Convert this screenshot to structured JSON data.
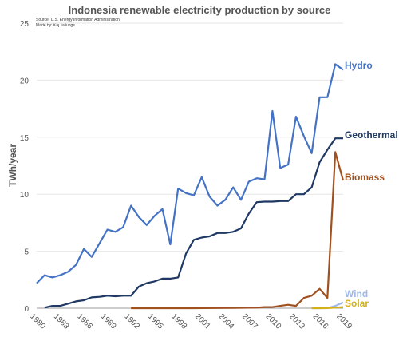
{
  "chart_data": {
    "type": "line",
    "title": "Indonesia renewable electricity production by source",
    "source": "Source: U.S. Energy Information Administration",
    "author": "Made by: Kaj Tallungs",
    "ylabel": "TWh/year",
    "xlabel": "",
    "xlim": [
      1980,
      2019
    ],
    "ylim": [
      0,
      25
    ],
    "yticks": [
      "0",
      "5",
      "10",
      "15",
      "20",
      "25"
    ],
    "xticks": [
      "1980",
      "1983",
      "1986",
      "1989",
      "1992",
      "1995",
      "1998",
      "2001",
      "2004",
      "2007",
      "2010",
      "2013",
      "2016",
      "2019"
    ],
    "grid": true,
    "legend": "labels at line ends",
    "series": [
      {
        "name": "Hydro",
        "color": "#4472c4",
        "x": [
          1980,
          1981,
          1982,
          1983,
          1984,
          1985,
          1986,
          1987,
          1988,
          1989,
          1990,
          1991,
          1992,
          1993,
          1994,
          1995,
          1996,
          1997,
          1998,
          1999,
          2000,
          2001,
          2002,
          2003,
          2004,
          2005,
          2006,
          2007,
          2008,
          2009,
          2010,
          2011,
          2012,
          2013,
          2014,
          2015,
          2016,
          2017,
          2018,
          2019
        ],
        "y": [
          2.2,
          2.9,
          2.7,
          2.9,
          3.2,
          3.8,
          5.2,
          4.5,
          5.7,
          6.9,
          6.7,
          7.1,
          9.0,
          8.0,
          7.3,
          8.1,
          8.7,
          5.6,
          10.5,
          10.1,
          9.9,
          11.5,
          9.8,
          9.0,
          9.5,
          10.6,
          9.5,
          11.1,
          11.4,
          11.3,
          17.3,
          12.3,
          12.6,
          16.8,
          15.1,
          13.6,
          18.5,
          18.5,
          21.4,
          20.9
        ]
      },
      {
        "name": "Geothermal",
        "color": "#1f3864",
        "x": [
          1981,
          1982,
          1983,
          1984,
          1985,
          1986,
          1987,
          1988,
          1989,
          1990,
          1991,
          1992,
          1993,
          1994,
          1995,
          1996,
          1997,
          1998,
          1999,
          2000,
          2001,
          2002,
          2003,
          2004,
          2005,
          2006,
          2007,
          2008,
          2009,
          2010,
          2011,
          2012,
          2013,
          2014,
          2015,
          2016,
          2017,
          2018,
          2019
        ],
        "y": [
          0.05,
          0.2,
          0.2,
          0.4,
          0.6,
          0.7,
          0.95,
          1.0,
          1.1,
          1.05,
          1.1,
          1.1,
          1.9,
          2.2,
          2.35,
          2.6,
          2.6,
          2.7,
          4.8,
          6.0,
          6.2,
          6.3,
          6.6,
          6.6,
          6.7,
          7.0,
          8.3,
          9.3,
          9.35,
          9.35,
          9.4,
          9.4,
          10.0,
          10.0,
          10.6,
          12.8,
          13.9,
          14.9,
          14.9
        ]
      },
      {
        "name": "Biomass",
        "color": "#a0511f",
        "x": [
          1992,
          1995,
          2000,
          2005,
          2008,
          2009,
          2010,
          2011,
          2012,
          2013,
          2014,
          2015,
          2016,
          2017,
          2018,
          2019
        ],
        "y": [
          0.0,
          0.0,
          0.0,
          0.02,
          0.05,
          0.1,
          0.1,
          0.2,
          0.3,
          0.2,
          0.9,
          1.1,
          1.7,
          0.9,
          13.7,
          11.2
        ]
      },
      {
        "name": "Wind",
        "color": "#9fb8e6",
        "x": [
          2015,
          2016,
          2017,
          2018,
          2019
        ],
        "y": [
          0.0,
          0.0,
          0.01,
          0.2,
          0.5
        ]
      },
      {
        "name": "Solar",
        "color": "#d4b11a",
        "x": [
          2015,
          2016,
          2017,
          2018,
          2019
        ],
        "y": [
          0.0,
          0.0,
          0.01,
          0.05,
          0.1
        ]
      }
    ]
  }
}
